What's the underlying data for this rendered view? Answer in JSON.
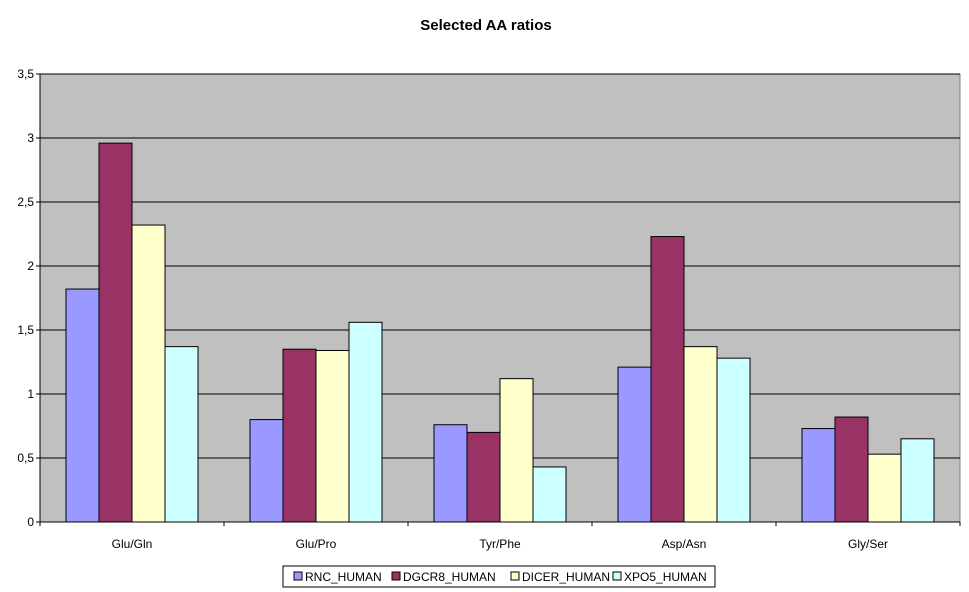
{
  "chart_data": {
    "type": "bar",
    "title": "Selected AA ratios",
    "xlabel": "",
    "ylabel": "",
    "categories": [
      "Glu/Gln",
      "Glu/Pro",
      "Tyr/Phe",
      "Asp/Asn",
      "Gly/Ser"
    ],
    "y_ticks": [
      "0",
      "0,5",
      "1",
      "1,5",
      "2",
      "2,5",
      "3",
      "3,5"
    ],
    "ylim": [
      0,
      3.5
    ],
    "grid": true,
    "legend_position": "bottom",
    "series": [
      {
        "name": "RNC_HUMAN",
        "color": "#9999ff",
        "values": [
          1.82,
          0.8,
          0.76,
          1.21,
          0.73
        ]
      },
      {
        "name": "DGCR8_HUMAN",
        "color": "#993366",
        "values": [
          2.96,
          1.35,
          0.7,
          2.23,
          0.82
        ]
      },
      {
        "name": "DICER_HUMAN",
        "color": "#ffffcc",
        "values": [
          2.32,
          1.34,
          1.12,
          1.37,
          0.53
        ]
      },
      {
        "name": "XPO5_HUMAN",
        "color": "#ccffff",
        "values": [
          1.37,
          1.56,
          0.43,
          1.28,
          0.65
        ]
      }
    ],
    "plot_background": "#c0c0c0"
  }
}
